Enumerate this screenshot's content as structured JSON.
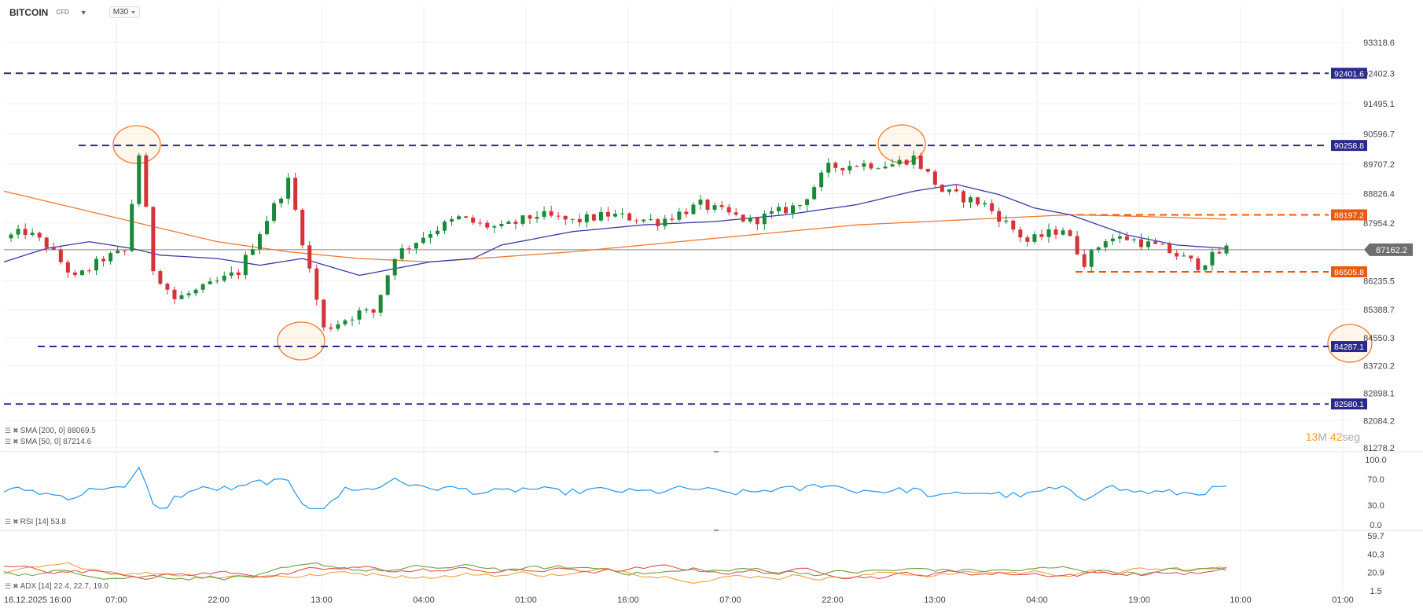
{
  "header": {
    "symbol": "BITCOIN",
    "symbol_type": "CFD",
    "timeframe": "M30"
  },
  "indicators": {
    "sma200": "SMA [200, 0]  88069.5",
    "sma50": "SMA [50, 0]  87214.6",
    "rsi": "RSI [14]  53.8",
    "adx": "ADX [14]  22.4,  22.7,  19.0"
  },
  "countdown": {
    "minutes": "13",
    "m_unit": "M",
    "seconds": "42",
    "s_unit": "seg"
  },
  "colors": {
    "bull": "#1a8a3a",
    "bear": "#d6323a",
    "sma50": "#3b3aa8",
    "sma200": "#f07830",
    "level_blue": "#2b2a8c",
    "level_orange": "#e85a10",
    "rsi": "#2196f3"
  },
  "chart_data": {
    "type": "candlestick",
    "y_ticks": [
      "93318.6",
      "92402.3",
      "91495.1",
      "90596.7",
      "89707.2",
      "88826.4",
      "87954.2",
      "87162.2",
      "86235.5",
      "85388.7",
      "84550.3",
      "83720.2",
      "82898.1",
      "82084.2",
      "81278.2"
    ],
    "x_ticks": [
      "16.12.2025  16:00",
      "07:00",
      "22:00",
      "13:00",
      "04:00",
      "01:00",
      "16:00",
      "07:00",
      "22:00",
      "13:00",
      "04:00",
      "19:00",
      "10:00",
      "01:00"
    ],
    "current_price": "87162.2",
    "levels": [
      {
        "value": "92401.6",
        "color": "blue"
      },
      {
        "value": "90258.8",
        "color": "blue"
      },
      {
        "value": "88197.2",
        "color": "orange"
      },
      {
        "value": "86505.8",
        "color": "orange"
      },
      {
        "value": "84287.1",
        "color": "blue"
      },
      {
        "value": "82580.1",
        "color": "blue"
      }
    ],
    "price_path": [
      [
        0,
        87500
      ],
      [
        3,
        87700
      ],
      [
        6,
        87300
      ],
      [
        10,
        86300
      ],
      [
        14,
        86900
      ],
      [
        17,
        87100
      ],
      [
        19,
        90000
      ],
      [
        21,
        86600
      ],
      [
        24,
        85700
      ],
      [
        28,
        86000
      ],
      [
        33,
        86500
      ],
      [
        36,
        87700
      ],
      [
        40,
        89200
      ],
      [
        45,
        84800
      ],
      [
        50,
        85300
      ],
      [
        52,
        85300
      ],
      [
        55,
        87000
      ],
      [
        60,
        87700
      ],
      [
        64,
        88100
      ],
      [
        67,
        87900
      ],
      [
        70,
        87800
      ],
      [
        75,
        88200
      ],
      [
        80,
        88000
      ],
      [
        85,
        88200
      ],
      [
        92,
        88000
      ],
      [
        98,
        88500
      ],
      [
        105,
        88000
      ],
      [
        112,
        88500
      ],
      [
        116,
        89600
      ],
      [
        120,
        89700
      ],
      [
        125,
        89700
      ],
      [
        128,
        89900
      ],
      [
        132,
        88900
      ],
      [
        138,
        88500
      ],
      [
        144,
        87400
      ],
      [
        149,
        87800
      ],
      [
        152,
        86800
      ],
      [
        155,
        87500
      ],
      [
        158,
        87500
      ],
      [
        163,
        87200
      ],
      [
        168,
        86700
      ],
      [
        172,
        87200
      ]
    ],
    "sma50_path": [
      [
        0,
        86800
      ],
      [
        6,
        87200
      ],
      [
        12,
        87400
      ],
      [
        18,
        87200
      ],
      [
        22,
        87000
      ],
      [
        30,
        86900
      ],
      [
        36,
        86700
      ],
      [
        42,
        86900
      ],
      [
        50,
        86400
      ],
      [
        55,
        86600
      ],
      [
        60,
        86800
      ],
      [
        66,
        86900
      ],
      [
        70,
        87300
      ],
      [
        80,
        87700
      ],
      [
        90,
        87900
      ],
      [
        100,
        88000
      ],
      [
        110,
        88200
      ],
      [
        120,
        88500
      ],
      [
        128,
        88900
      ],
      [
        134,
        89100
      ],
      [
        140,
        88800
      ],
      [
        145,
        88400
      ],
      [
        150,
        88200
      ],
      [
        158,
        87600
      ],
      [
        165,
        87300
      ],
      [
        172,
        87200
      ]
    ],
    "sma200_path": [
      [
        0,
        88900
      ],
      [
        10,
        88400
      ],
      [
        20,
        87900
      ],
      [
        30,
        87400
      ],
      [
        40,
        87100
      ],
      [
        50,
        86900
      ],
      [
        60,
        86800
      ],
      [
        70,
        86950
      ],
      [
        80,
        87100
      ],
      [
        90,
        87300
      ],
      [
        100,
        87500
      ],
      [
        110,
        87700
      ],
      [
        120,
        87900
      ],
      [
        130,
        88000
      ],
      [
        140,
        88100
      ],
      [
        150,
        88200
      ],
      [
        160,
        88150
      ],
      [
        172,
        88070
      ]
    ],
    "rsi": {
      "ticks": [
        "100.0",
        "70.0",
        "30.0",
        "0.0"
      ],
      "value": "53.8"
    },
    "adx": {
      "ticks": [
        "59.7",
        "40.3",
        "20.9",
        "1.5"
      ]
    }
  }
}
